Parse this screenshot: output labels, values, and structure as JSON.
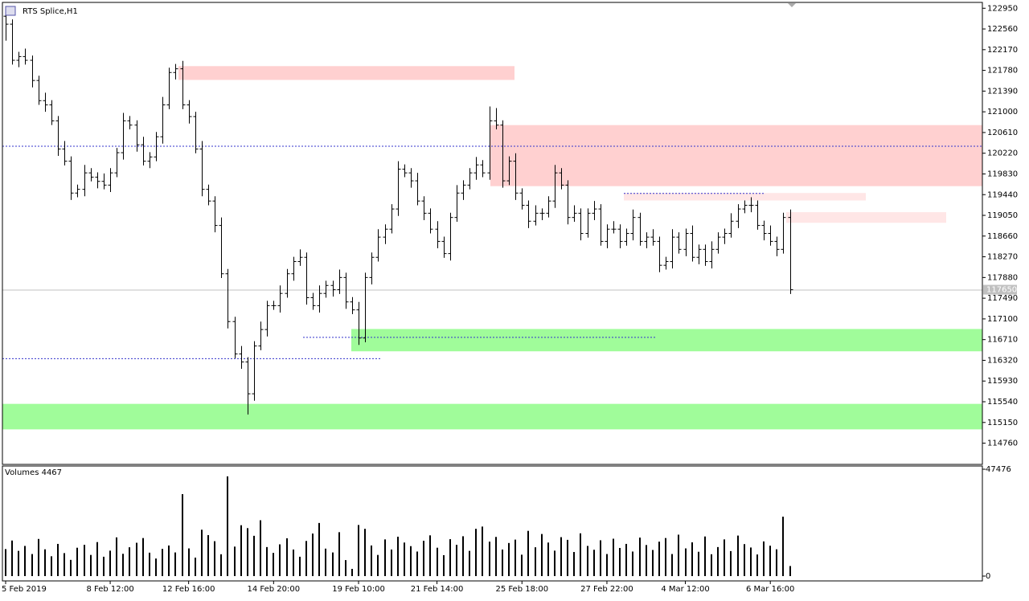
{
  "chart_data": {
    "type": "ohlc",
    "title": "RTS Splice,H1",
    "categories": [
      "5 Feb 2019",
      null,
      null,
      null,
      null,
      null,
      null,
      null,
      null,
      null,
      null,
      null,
      null,
      null,
      null,
      null,
      "8 Feb 12:00",
      null,
      null,
      null,
      null,
      null,
      null,
      null,
      null,
      null,
      null,
      null,
      "12 Feb 16:00",
      null,
      null,
      null,
      null,
      null,
      null,
      null,
      null,
      null,
      null,
      null,
      null,
      "14 Feb 20:00",
      null,
      null,
      null,
      null,
      null,
      null,
      null,
      null,
      null,
      null,
      null,
      null,
      "19 Feb 10:00",
      null,
      null,
      null,
      null,
      null,
      null,
      null,
      null,
      null,
      null,
      null,
      "21 Feb 14:00",
      null,
      null,
      null,
      null,
      null,
      null,
      null,
      null,
      null,
      null,
      null,
      null,
      "25 Feb 18:00",
      null,
      null,
      null,
      null,
      null,
      null,
      null,
      null,
      null,
      null,
      null,
      null,
      "27 Feb 22:00",
      null,
      null,
      null,
      null,
      null,
      null,
      null,
      null,
      null,
      null,
      null,
      "4 Mar 12:00",
      null,
      null,
      null,
      null,
      null,
      null,
      null,
      null,
      null,
      null,
      null,
      null,
      "6 Mar 16:00",
      null,
      null,
      null
    ],
    "open": [
      122800,
      122650,
      121970,
      122040,
      121970,
      121590,
      121210,
      121130,
      120830,
      120300,
      120070,
      119470,
      119540,
      119850,
      119770,
      119690,
      119620,
      119850,
      120230,
      120830,
      120750,
      120380,
      120070,
      120150,
      120530,
      121130,
      121740,
      121810,
      121130,
      120910,
      120300,
      119540,
      119320,
      118860,
      117950,
      117050,
      116440,
      116290,
      115690,
      116590,
      116900,
      117350,
      117350,
      117580,
      117950,
      118180,
      118260,
      117500,
      117350,
      117580,
      117730,
      117650,
      117880,
      117420,
      117270,
      116740,
      117880,
      118260,
      118640,
      118790,
      119170,
      119920,
      119850,
      119700,
      119320,
      119090,
      118790,
      118560,
      118330,
      119010,
      119470,
      119620,
      119850,
      120000,
      119850,
      120830,
      120750,
      119700,
      120070,
      119470,
      119240,
      118940,
      119090,
      119090,
      119320,
      119850,
      119620,
      119010,
      119090,
      118710,
      119090,
      119170,
      118560,
      118790,
      118790,
      118560,
      118710,
      119010,
      118560,
      118640,
      118560,
      118110,
      118180,
      118640,
      118410,
      118710,
      118260,
      118410,
      118180,
      118410,
      118640,
      118710,
      118940,
      119170,
      119240,
      119240,
      118860,
      118710,
      118560,
      118410,
      119010
    ],
    "high": [
      122950,
      122740,
      122130,
      122190,
      122060,
      121680,
      121360,
      121220,
      120920,
      120450,
      120160,
      119630,
      120000,
      119940,
      119860,
      119840,
      119940,
      120320,
      120980,
      120920,
      120840,
      120530,
      120240,
      120620,
      121280,
      121830,
      121900,
      121960,
      121220,
      121000,
      120450,
      119630,
      119410,
      119010,
      118040,
      117140,
      116590,
      116380,
      116680,
      117050,
      117440,
      117440,
      117730,
      118040,
      118270,
      118410,
      118350,
      117590,
      117730,
      117820,
      117820,
      118030,
      117970,
      117510,
      117420,
      117970,
      118350,
      118790,
      118880,
      119260,
      120070,
      120010,
      119940,
      119850,
      119410,
      119180,
      118940,
      118650,
      119100,
      119620,
      119710,
      119940,
      120150,
      120090,
      121100,
      121070,
      120840,
      120160,
      120220,
      119560,
      119330,
      119240,
      119180,
      119410,
      120000,
      119940,
      119710,
      119240,
      119180,
      119180,
      119320,
      119260,
      118880,
      118940,
      118880,
      118800,
      119160,
      119100,
      118730,
      118790,
      118650,
      118270,
      118790,
      118730,
      118800,
      118860,
      118500,
      118500,
      118560,
      118730,
      118800,
      119090,
      119260,
      119330,
      119390,
      119330,
      118950,
      118860,
      118650,
      119100,
      119160
    ],
    "low": [
      122340,
      121890,
      121840,
      121890,
      121460,
      121130,
      121000,
      120750,
      120170,
      119990,
      119340,
      119390,
      119410,
      119690,
      119560,
      119540,
      119490,
      119770,
      120100,
      120670,
      120250,
      119990,
      119940,
      120070,
      120400,
      121050,
      121610,
      121050,
      120780,
      120220,
      119410,
      119240,
      118730,
      117870,
      116920,
      116360,
      116160,
      115300,
      115560,
      116510,
      116770,
      117270,
      117220,
      117500,
      117820,
      118100,
      117370,
      117270,
      117220,
      117500,
      117520,
      117570,
      117290,
      117190,
      116610,
      116660,
      117750,
      118180,
      118510,
      118710,
      119040,
      119770,
      119570,
      119240,
      118960,
      118710,
      118430,
      118250,
      118200,
      118930,
      119340,
      119540,
      119720,
      119770,
      119720,
      120670,
      119570,
      119620,
      119340,
      119160,
      118810,
      118860,
      118960,
      119010,
      119190,
      119540,
      118880,
      118930,
      118580,
      118630,
      118960,
      118480,
      118430,
      118710,
      118430,
      118480,
      118580,
      118480,
      118430,
      118480,
      117980,
      118030,
      118050,
      118330,
      118280,
      118180,
      118130,
      118100,
      118050,
      118330,
      118510,
      118630,
      118810,
      119090,
      119110,
      118780,
      118580,
      118480,
      118280,
      118330,
      117570
    ],
    "close": [
      122650,
      121970,
      122040,
      121970,
      121590,
      121210,
      121130,
      120830,
      120300,
      120070,
      119470,
      119540,
      119850,
      119770,
      119690,
      119620,
      119850,
      120230,
      120830,
      120750,
      120380,
      120070,
      120150,
      120530,
      121130,
      121740,
      121810,
      121130,
      120910,
      120300,
      119540,
      119320,
      118860,
      117950,
      117050,
      116440,
      116290,
      115690,
      116590,
      116900,
      117350,
      117350,
      117580,
      117950,
      118180,
      118260,
      117500,
      117350,
      117580,
      117730,
      117650,
      117880,
      117420,
      117270,
      116740,
      117880,
      118260,
      118640,
      118790,
      119170,
      119920,
      119850,
      119700,
      119320,
      119090,
      118790,
      118560,
      118330,
      119010,
      119470,
      119620,
      119850,
      120000,
      119850,
      120830,
      120750,
      119700,
      120070,
      119470,
      119240,
      118940,
      119090,
      119090,
      119320,
      119850,
      119620,
      119010,
      119090,
      118710,
      119090,
      119170,
      118560,
      118790,
      118790,
      118560,
      118710,
      119010,
      118560,
      118640,
      118560,
      118110,
      118180,
      118640,
      118410,
      118710,
      118260,
      118410,
      118180,
      118410,
      118640,
      118710,
      118940,
      119170,
      119240,
      119240,
      118860,
      118710,
      118560,
      118410,
      119010,
      117650
    ],
    "color": "#000000",
    "ylim": [
      114360,
      123060
    ],
    "yticks": [
      122950,
      122560,
      122170,
      121780,
      121390,
      121000,
      120610,
      120220,
      119830,
      119440,
      119050,
      118660,
      118270,
      117880,
      117490,
      117100,
      116710,
      116320,
      115930,
      115540,
      115150,
      114760
    ],
    "current_price": 117650,
    "current_color": "#c0c0c0",
    "zones": [
      {
        "low": 121600,
        "high": 121860,
        "color": "#ffd0d0"
      },
      {
        "low": 119600,
        "high": 120750,
        "color": "#ffd0d0"
      },
      {
        "low": 119330,
        "high": 119470,
        "color": "#ffe6e6"
      },
      {
        "low": 118910,
        "high": 119110,
        "color": "#ffe6e6"
      },
      {
        "low": 116490,
        "high": 116910,
        "color": "#a0fc9a"
      },
      {
        "low": 115020,
        "high": 115500,
        "color": "#a0fc9a"
      }
    ],
    "levels": [
      120360,
      116360,
      116760,
      119470
    ],
    "level_color": "#3333cc",
    "volume": {
      "label": "Volumes 4467",
      "color": "#000000",
      "vlim": [
        0,
        47476
      ],
      "vticks": [
        47476,
        0
      ],
      "values": [
        12000,
        15800,
        11200,
        13400,
        9800,
        16500,
        11900,
        8800,
        14300,
        10200,
        7200,
        12600,
        13900,
        9400,
        15100,
        8600,
        11300,
        17200,
        9900,
        12800,
        14800,
        16900,
        10400,
        7800,
        12100,
        13600,
        10500,
        36400,
        12300,
        8200,
        20600,
        18200,
        15500,
        9700,
        44300,
        13100,
        22600,
        21300,
        17900,
        24800,
        12900,
        10300,
        14100,
        16800,
        11800,
        8600,
        15600,
        18900,
        23600,
        12200,
        10500,
        19500,
        7100,
        3200,
        22700,
        21000,
        13600,
        9400,
        16300,
        11800,
        17500,
        14900,
        13300,
        10900,
        15700,
        18100,
        12600,
        9300,
        16400,
        13900,
        17700,
        11200,
        21000,
        22000,
        15300,
        17400,
        11800,
        14700,
        16200,
        9500,
        20100,
        12800,
        18700,
        14900,
        11300,
        17300,
        16100,
        10700,
        19000,
        13400,
        11700,
        15900,
        9800,
        16600,
        12500,
        14300,
        10900,
        17100,
        13800,
        11600,
        15300,
        16900,
        9800,
        18400,
        12300,
        15000,
        10800,
        17600,
        9700,
        12900,
        16300,
        11100,
        18000,
        14200,
        12700,
        9600,
        15400,
        13500,
        11900,
        26400,
        4467
      ]
    }
  }
}
